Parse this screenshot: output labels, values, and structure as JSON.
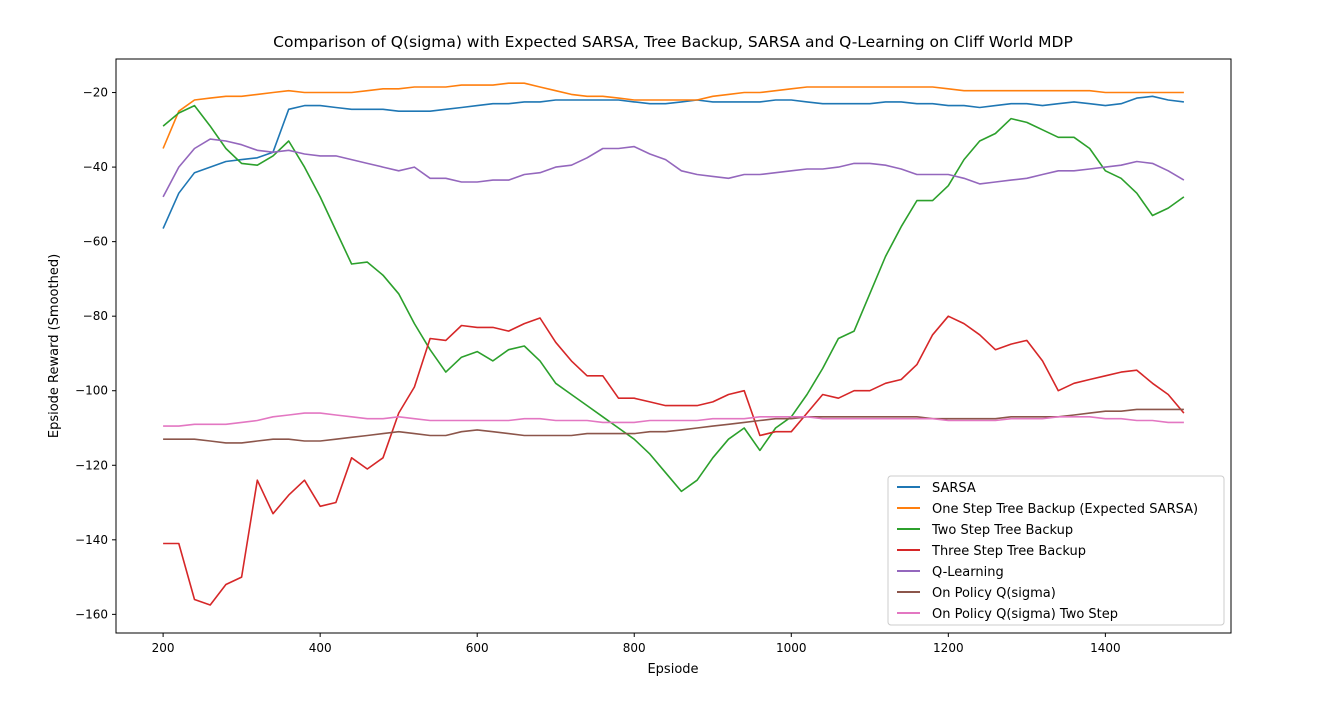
{
  "chart_data": {
    "type": "line",
    "title": "Comparison of Q(sigma) with Expected SARSA, Tree Backup, SARSA and Q-Learning on Cliff World MDP",
    "xlabel": "Epsiode",
    "ylabel": "Epsiode Reward (Smoothed)",
    "xlim": [
      140,
      1560
    ],
    "ylim": [
      -165,
      -11
    ],
    "xticks": [
      200,
      400,
      600,
      800,
      1000,
      1200,
      1400
    ],
    "yticks": [
      -20,
      -40,
      -60,
      -80,
      -100,
      -120,
      -140,
      -160
    ],
    "grid": false,
    "legend_position": "lower-right",
    "x": [
      200,
      220,
      240,
      260,
      280,
      300,
      320,
      340,
      360,
      380,
      400,
      420,
      440,
      460,
      480,
      500,
      520,
      540,
      560,
      580,
      600,
      620,
      640,
      660,
      680,
      700,
      720,
      740,
      760,
      780,
      800,
      820,
      840,
      860,
      880,
      900,
      920,
      940,
      960,
      980,
      1000,
      1020,
      1040,
      1060,
      1080,
      1100,
      1120,
      1140,
      1160,
      1180,
      1200,
      1220,
      1240,
      1260,
      1280,
      1300,
      1320,
      1340,
      1360,
      1380,
      1400,
      1420,
      1440,
      1460,
      1480,
      1500
    ],
    "series": [
      {
        "name": "SARSA",
        "color": "#1f77b4",
        "values": [
          -56.5,
          -47,
          -41.5,
          -40,
          -38.5,
          -38,
          -37.5,
          -36,
          -24.5,
          -23.5,
          -23.5,
          -24,
          -24.5,
          -24.5,
          -24.5,
          -25,
          -25,
          -25,
          -24.5,
          -24,
          -23.5,
          -23,
          -23,
          -22.5,
          -22.5,
          -22,
          -22,
          -22,
          -22,
          -22,
          -22.5,
          -23,
          -23,
          -22.5,
          -22,
          -22.5,
          -22.5,
          -22.5,
          -22.5,
          -22,
          -22,
          -22.5,
          -23,
          -23,
          -23,
          -23,
          -22.5,
          -22.5,
          -23,
          -23,
          -23.5,
          -23.5,
          -24,
          -23.5,
          -23,
          -23,
          -23.5,
          -23,
          -22.5,
          -23,
          -23.5,
          -23,
          -21.5,
          -21,
          -22,
          -22.5
        ]
      },
      {
        "name": "One Step Tree Backup (Expected SARSA)",
        "color": "#ff7f0e",
        "values": [
          -35,
          -25,
          -22,
          -21.5,
          -21,
          -21,
          -20.5,
          -20,
          -19.5,
          -20,
          -20,
          -20,
          -20,
          -19.5,
          -19,
          -19,
          -18.5,
          -18.5,
          -18.5,
          -18,
          -18,
          -18,
          -17.5,
          -17.5,
          -18.5,
          -19.5,
          -20.5,
          -21,
          -21,
          -21.5,
          -22,
          -22,
          -22,
          -22,
          -22,
          -21,
          -20.5,
          -20,
          -20,
          -19.5,
          -19,
          -18.5,
          -18.5,
          -18.5,
          -18.5,
          -18.5,
          -18.5,
          -18.5,
          -18.5,
          -18.5,
          -19,
          -19.5,
          -19.5,
          -19.5,
          -19.5,
          -19.5,
          -19.5,
          -19.5,
          -19.5,
          -19.5,
          -20,
          -20,
          -20,
          -20,
          -20,
          -20
        ]
      },
      {
        "name": "Two Step Tree Backup",
        "color": "#2ca02c",
        "values": [
          -29,
          -25.5,
          -23.5,
          -29,
          -35,
          -39,
          -39.5,
          -37,
          -33,
          -40,
          -48,
          -57,
          -66,
          -65.5,
          -69,
          -74,
          -82,
          -89,
          -95,
          -91,
          -89.5,
          -92,
          -89,
          -88,
          -92,
          -98,
          -101,
          -104,
          -107,
          -110,
          -113,
          -117,
          -122,
          -127,
          -124,
          -118,
          -113,
          -110,
          -116,
          -110,
          -107,
          -101,
          -94,
          -86,
          -84,
          -74,
          -64,
          -56,
          -49,
          -49,
          -45,
          -38,
          -33,
          -31,
          -27,
          -28,
          -30,
          -32,
          -32,
          -35,
          -41,
          -43,
          -47,
          -53,
          -51,
          -48
        ]
      },
      {
        "name": "Three Step Tree Backup",
        "color": "#d62728",
        "values": [
          -141,
          -141,
          -156,
          -157.5,
          -152,
          -150,
          -124,
          -133,
          -128,
          -124,
          -131,
          -130,
          -118,
          -121,
          -118,
          -106,
          -99,
          -86,
          -86.5,
          -82.5,
          -83,
          -83,
          -84,
          -82,
          -80.5,
          -87,
          -92,
          -96,
          -96,
          -102,
          -102,
          -103,
          -104,
          -104,
          -104,
          -103,
          -101,
          -100,
          -112,
          -111,
          -111,
          -106,
          -101,
          -102,
          -100,
          -100,
          -98,
          -97,
          -93,
          -85,
          -80,
          -82,
          -85,
          -89,
          -87.5,
          -86.5,
          -92,
          -100,
          -98,
          -97,
          -96,
          -95,
          -94.5,
          -98,
          -101,
          -106
        ]
      },
      {
        "name": "Q-Learning",
        "color": "#9467bd",
        "values": [
          -48,
          -40,
          -35,
          -32.5,
          -33,
          -34,
          -35.5,
          -36,
          -35.5,
          -36.5,
          -37,
          -37,
          -38,
          -39,
          -40,
          -41,
          -40,
          -43,
          -43,
          -44,
          -44,
          -43.5,
          -43.5,
          -42,
          -41.5,
          -40,
          -39.5,
          -37.5,
          -35,
          -35,
          -34.5,
          -36.5,
          -38,
          -41,
          -42,
          -42.5,
          -43,
          -42,
          -42,
          -41.5,
          -41,
          -40.5,
          -40.5,
          -40,
          -39,
          -39,
          -39.5,
          -40.5,
          -42,
          -42,
          -42,
          -43,
          -44.5,
          -44,
          -43.5,
          -43,
          -42,
          -41,
          -41,
          -40.5,
          -40,
          -39.5,
          -38.5,
          -39,
          -41,
          -43.5
        ]
      },
      {
        "name": "On Policy Q(sigma)",
        "color": "#8c564b",
        "values": [
          -113,
          -113,
          -113,
          -113.5,
          -114,
          -114,
          -113.5,
          -113,
          -113,
          -113.5,
          -113.5,
          -113,
          -112.5,
          -112,
          -111.5,
          -111,
          -111.5,
          -112,
          -112,
          -111,
          -110.5,
          -111,
          -111.5,
          -112,
          -112,
          -112,
          -112,
          -111.5,
          -111.5,
          -111.5,
          -111.5,
          -111,
          -111,
          -110.5,
          -110,
          -109.5,
          -109,
          -108.5,
          -108,
          -107.5,
          -107.5,
          -107,
          -107,
          -107,
          -107,
          -107,
          -107,
          -107,
          -107,
          -107.5,
          -107.5,
          -107.5,
          -107.5,
          -107.5,
          -107,
          -107,
          -107,
          -107,
          -106.5,
          -106,
          -105.5,
          -105.5,
          -105,
          -105,
          -105,
          -105
        ]
      },
      {
        "name": "On Policy Q(sigma) Two Step",
        "color": "#e377c2",
        "values": [
          -109.5,
          -109.5,
          -109,
          -109,
          -109,
          -108.5,
          -108,
          -107,
          -106.5,
          -106,
          -106,
          -106.5,
          -107,
          -107.5,
          -107.5,
          -107,
          -107.5,
          -108,
          -108,
          -108,
          -108,
          -108,
          -108,
          -107.5,
          -107.5,
          -108,
          -108,
          -108,
          -108.5,
          -108.5,
          -108.5,
          -108,
          -108,
          -108,
          -108,
          -107.5,
          -107.5,
          -107.5,
          -107,
          -107,
          -107,
          -107,
          -107.5,
          -107.5,
          -107.5,
          -107.5,
          -107.5,
          -107.5,
          -107.5,
          -107.5,
          -108,
          -108,
          -108,
          -108,
          -107.5,
          -107.5,
          -107.5,
          -107,
          -107,
          -107,
          -107.5,
          -107.5,
          -108,
          -108,
          -108.5,
          -108.5
        ]
      }
    ]
  }
}
